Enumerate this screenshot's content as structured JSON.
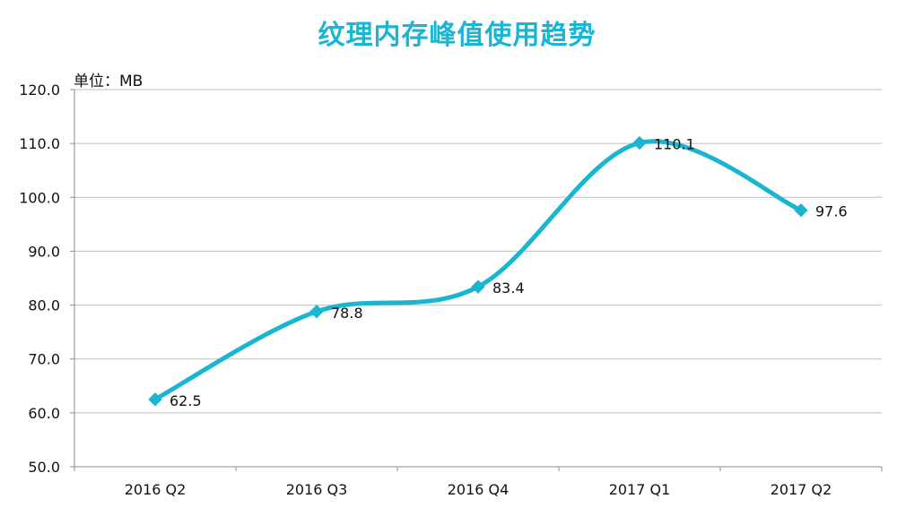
{
  "chart_data": {
    "type": "line",
    "title": "纹理内存峰值使用趋势",
    "unit_label": "单位：MB",
    "xlabel": "",
    "ylabel": "",
    "categories": [
      "2016 Q2",
      "2016 Q3",
      "2016 Q4",
      "2017 Q1",
      "2017 Q2"
    ],
    "series": [
      {
        "values": [
          62.5,
          78.8,
          83.4,
          110.1,
          97.6
        ],
        "color": "#1ab5d1"
      }
    ],
    "ylim": [
      50,
      120
    ],
    "y_ticks": [
      "50.0",
      "60.0",
      "70.0",
      "80.0",
      "90.0",
      "100.0",
      "110.0",
      "120.0"
    ],
    "data_labels": [
      "62.5",
      "78.8",
      "83.4",
      "110.1",
      "97.6"
    ],
    "grid": true,
    "smooth": true,
    "legend": "none"
  }
}
